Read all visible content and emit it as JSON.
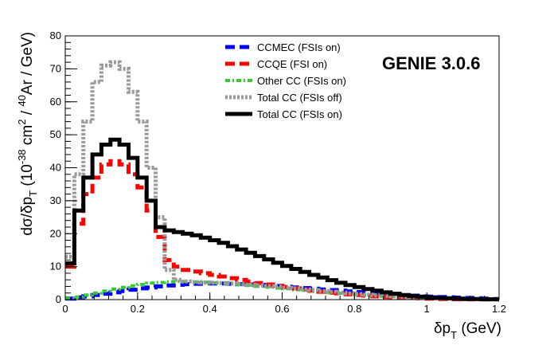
{
  "chart_data": {
    "type": "line",
    "annotation": "GENIE 3.0.6",
    "xlabel": {
      "main": "δp",
      "sub": "T",
      "unit": " (GeV)"
    },
    "ylabel": {
      "main": "dσ/δp",
      "sub1": "T",
      "mid": " (10",
      "sup1": "-38",
      "mid2": " cm",
      "sup2": "2",
      "mid3": " / ",
      "sup3": "40",
      "tail": "Ar / GeV)"
    },
    "xlim": [
      0,
      1.2
    ],
    "ylim": [
      0,
      80
    ],
    "xticks": [
      0,
      0.2,
      0.4,
      0.6,
      0.8,
      1,
      1.2
    ],
    "xtick_labels": [
      "0",
      "0.2",
      "0.4",
      "0.6",
      "0.8",
      "1",
      "1.2"
    ],
    "yticks": [
      0,
      10,
      20,
      30,
      40,
      50,
      60,
      70,
      80
    ],
    "ytick_labels": [
      "0",
      "10",
      "20",
      "30",
      "40",
      "50",
      "60",
      "70",
      "80"
    ],
    "bin_width": 0.025,
    "bin_edges_start": 0,
    "series": [
      {
        "name": "CCMEC (FSIs on)",
        "color": "#0000ff",
        "style": "dashed",
        "values": [
          0.3,
          0.7,
          1.0,
          1.4,
          1.8,
          2.2,
          2.6,
          3.0,
          3.4,
          3.7,
          4.0,
          4.3,
          4.5,
          4.7,
          4.8,
          4.9,
          4.9,
          4.9,
          4.8,
          4.7,
          4.6,
          4.5,
          4.3,
          4.1,
          3.9,
          3.7,
          3.5,
          3.3,
          3.1,
          2.9,
          2.7,
          2.5,
          2.3,
          2.1,
          1.9,
          1.7,
          1.5,
          1.3,
          1.2,
          1.0,
          0.9,
          0.8,
          0.7,
          0.6,
          0.5,
          0.4,
          0.3,
          0.2
        ]
      },
      {
        "name": "CCQE (FSI on)",
        "color": "#ff0000",
        "style": "dashed",
        "values": [
          10,
          23,
          32,
          37,
          41,
          42,
          41,
          38,
          34,
          27,
          19,
          12,
          10,
          9,
          8.5,
          8,
          7.5,
          7,
          6.5,
          6,
          5.5,
          5,
          4.6,
          4.2,
          3.8,
          3.4,
          3.0,
          2.7,
          2.4,
          2.1,
          1.9,
          1.6,
          1.4,
          1.2,
          1.0,
          0.8,
          0.7,
          0.6,
          0.5,
          0.4,
          0.3,
          0.2,
          0.2,
          0.1,
          0.1,
          0.1,
          0.1,
          0.1
        ]
      },
      {
        "name": "Other CC (FSIs on)",
        "color": "#33cc33",
        "style": "dashdot",
        "values": [
          0.3,
          0.8,
          1.4,
          2.0,
          2.6,
          3.2,
          3.7,
          4.2,
          4.6,
          5.0,
          5.2,
          5.4,
          5.5,
          5.5,
          5.4,
          5.3,
          5.1,
          4.9,
          4.7,
          4.5,
          4.3,
          4.0,
          3.8,
          3.5,
          3.3,
          3.0,
          2.8,
          2.5,
          2.3,
          2.1,
          1.9,
          1.7,
          1.5,
          1.3,
          1.2,
          1.0,
          0.9,
          0.8,
          0.7,
          0.6,
          0.5,
          0.4,
          0.3,
          0.3,
          0.2,
          0.2,
          0.1,
          0.1
        ]
      },
      {
        "name": "Total CC (FSIs off)",
        "color": "#999999",
        "style": "dotted",
        "values": [
          13,
          38,
          54,
          66,
          71,
          72,
          70,
          63,
          54,
          40,
          25,
          9,
          6,
          5.5,
          5.3,
          5.2,
          5.1,
          5.0,
          4.9,
          4.7,
          4.5,
          4.3,
          4.1,
          3.9,
          3.6,
          3.4,
          3.1,
          2.9,
          2.6,
          2.4,
          2.1,
          1.9,
          1.7,
          1.5,
          1.3,
          1.1,
          1.0,
          0.8,
          0.7,
          0.6,
          0.5,
          0.4,
          0.3,
          0.3,
          0.2,
          0.2,
          0.1,
          0.1
        ]
      },
      {
        "name": "Total CC (FSIs on)",
        "color": "#000000",
        "style": "solid",
        "values": [
          11,
          27,
          37,
          44,
          47,
          48.5,
          47,
          43,
          37,
          30,
          22,
          21,
          20.5,
          20,
          19.5,
          18.8,
          18,
          17.2,
          16.2,
          15.2,
          14.2,
          13.2,
          12.2,
          11.2,
          10.2,
          9.3,
          8.4,
          7.5,
          6.7,
          5.9,
          5.1,
          4.4,
          3.8,
          3.2,
          2.7,
          2.2,
          1.8,
          1.4,
          1.1,
          0.9,
          0.7,
          0.5,
          0.4,
          0.3,
          0.2,
          0.2,
          0.1,
          0.1
        ]
      }
    ],
    "legend": {
      "position": "top-right",
      "border": false
    }
  }
}
